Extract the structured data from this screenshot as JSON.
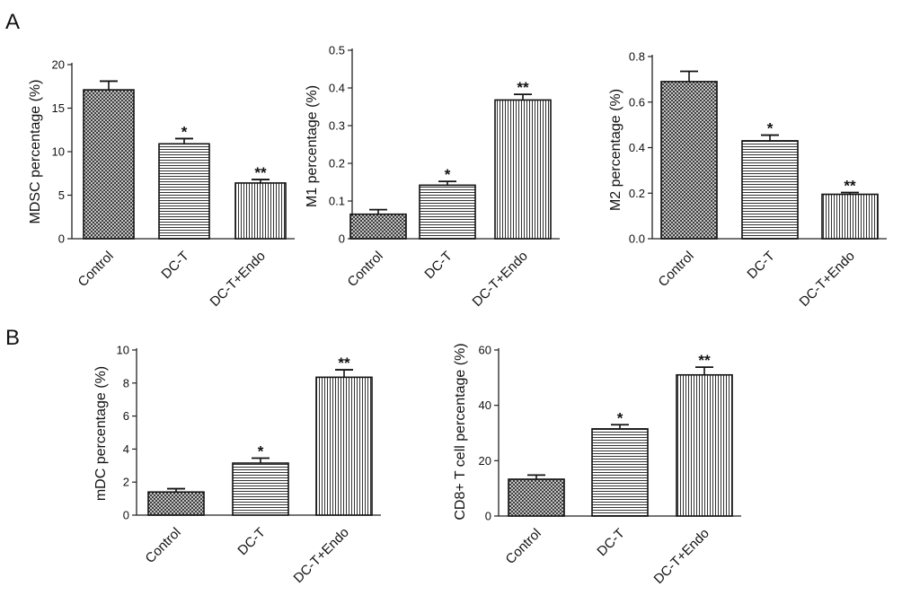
{
  "panels": [
    {
      "label": "A"
    },
    {
      "label": "B"
    }
  ],
  "chart_data": [
    {
      "type": "bar",
      "panel": "A",
      "categories": [
        "Control",
        "DC-T",
        "DC-T+Endo"
      ],
      "values": [
        17.1,
        10.9,
        6.4
      ],
      "errors": [
        1.0,
        0.6,
        0.4
      ],
      "significance": [
        "",
        "*",
        "**"
      ],
      "ylabel": "MDSC percentage (%)",
      "ylim": [
        0,
        20
      ],
      "yticks": [
        0,
        5,
        10,
        15,
        20
      ],
      "tick_labels": [
        "0",
        "5",
        "10",
        "15",
        "20"
      ],
      "patterns": [
        "crosshatch",
        "horizontal",
        "vertical"
      ]
    },
    {
      "type": "bar",
      "panel": "A",
      "categories": [
        "Control",
        "DC-T",
        "DC-T+Endo"
      ],
      "values": [
        0.065,
        0.142,
        0.368
      ],
      "errors": [
        0.012,
        0.01,
        0.015
      ],
      "significance": [
        "",
        "*",
        "**"
      ],
      "ylabel": "M1 percentage (%)",
      "ylim": [
        0,
        0.5
      ],
      "yticks": [
        0,
        0.1,
        0.2,
        0.3,
        0.4,
        0.5
      ],
      "tick_labels": [
        "0",
        "0.1",
        "0.2",
        "0.3",
        "0.4",
        "0.5"
      ],
      "patterns": [
        "crosshatch",
        "horizontal",
        "vertical"
      ]
    },
    {
      "type": "bar",
      "panel": "A",
      "categories": [
        "Control",
        "DC-T",
        "DC-T+Endo"
      ],
      "values": [
        0.69,
        0.43,
        0.195
      ],
      "errors": [
        0.045,
        0.025,
        0.008
      ],
      "significance": [
        "",
        "*",
        "**"
      ],
      "ylabel": "M2 percentage (%)",
      "ylim": [
        0,
        0.8
      ],
      "yticks": [
        0,
        0.2,
        0.4,
        0.6,
        0.8
      ],
      "tick_labels": [
        "0.0",
        "0.2",
        "0.4",
        "0.6",
        "0.8"
      ],
      "patterns": [
        "crosshatch",
        "horizontal",
        "vertical"
      ]
    },
    {
      "type": "bar",
      "panel": "B",
      "categories": [
        "Control",
        "DC-T",
        "DC-T+Endo"
      ],
      "values": [
        1.4,
        3.15,
        8.35
      ],
      "errors": [
        0.2,
        0.3,
        0.45
      ],
      "significance": [
        "",
        "*",
        "**"
      ],
      "ylabel": "mDC percentage (%)",
      "ylim": [
        0,
        10
      ],
      "yticks": [
        0,
        2,
        4,
        6,
        8,
        10
      ],
      "tick_labels": [
        "0",
        "2",
        "4",
        "6",
        "8",
        "10"
      ],
      "patterns": [
        "crosshatch",
        "horizontal",
        "vertical"
      ]
    },
    {
      "type": "bar",
      "panel": "B",
      "categories": [
        "Control",
        "DC-T",
        "DC-T+Endo"
      ],
      "values": [
        13.3,
        31.5,
        51.0
      ],
      "errors": [
        1.5,
        1.5,
        2.8
      ],
      "significance": [
        "",
        "*",
        "**"
      ],
      "ylabel": "CD8+ T cell percentage (%)",
      "ylim": [
        0,
        60
      ],
      "yticks": [
        0,
        20,
        40,
        60
      ],
      "tick_labels": [
        "0",
        "20",
        "40",
        "60"
      ],
      "patterns": [
        "crosshatch",
        "horizontal",
        "vertical"
      ]
    }
  ]
}
